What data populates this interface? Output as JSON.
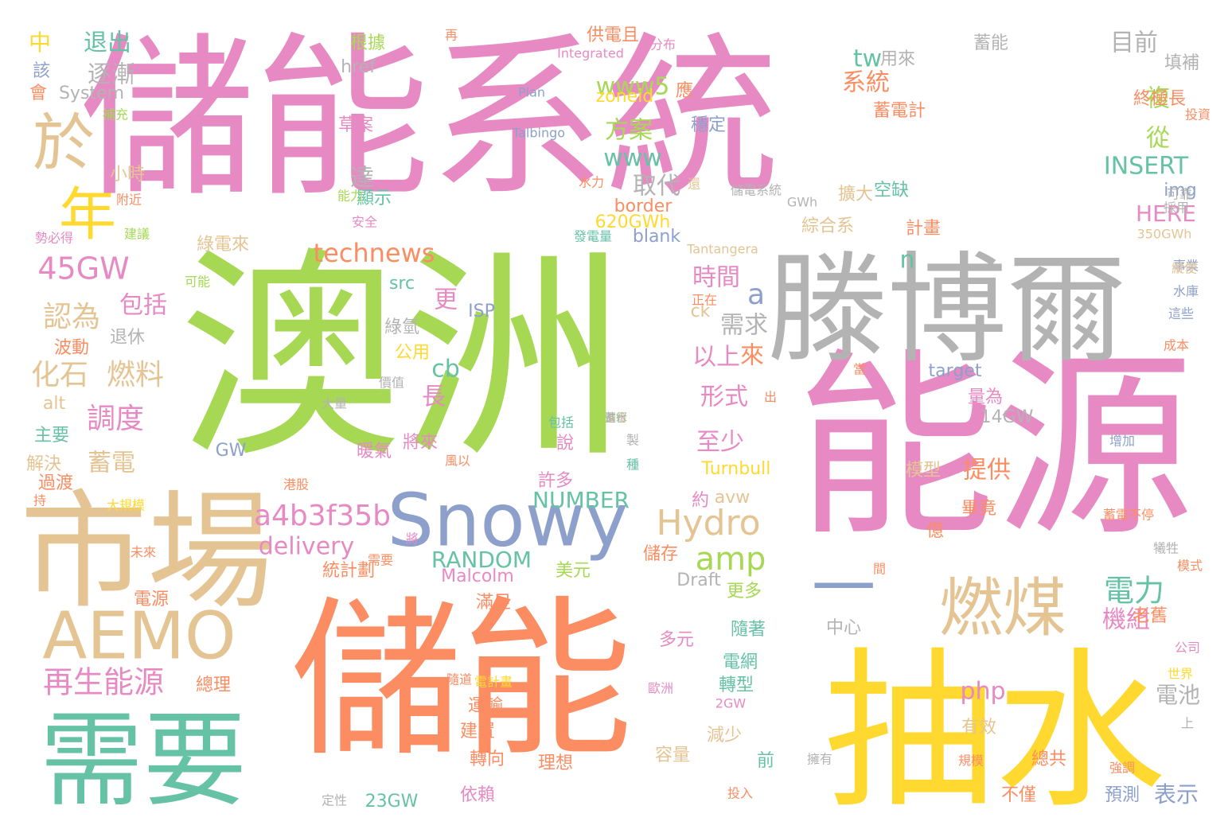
{
  "palette": {
    "pink": "#e78ac3",
    "green": "#a6d854",
    "orange": "#fc8d62",
    "yellow": "#ffd92f",
    "tan": "#e5c494",
    "gray": "#b3b3b3",
    "teal": "#66c2a5",
    "blue": "#8da0cb"
  },
  "words": [
    {
      "text": "儲能系統",
      "color": "pink",
      "weight": 1.0
    },
    {
      "text": "澳洲",
      "color": "green",
      "weight": 0.98
    },
    {
      "text": "能源",
      "color": "pink",
      "weight": 0.86
    },
    {
      "text": "儲能",
      "color": "orange",
      "weight": 0.86
    },
    {
      "text": "抽水",
      "color": "yellow",
      "weight": 0.84
    },
    {
      "text": "滕博爾",
      "color": "gray",
      "weight": 0.62
    },
    {
      "text": "市場",
      "color": "tan",
      "weight": 0.56
    },
    {
      "text": "需要",
      "color": "teal",
      "weight": 0.48
    },
    {
      "text": "Snowy",
      "color": "blue",
      "weight": 0.36
    },
    {
      "text": "AEMO",
      "color": "tan",
      "weight": 0.34
    },
    {
      "text": "燃煤",
      "color": "tan",
      "weight": 0.3
    },
    {
      "text": "一",
      "color": "blue",
      "weight": 0.26
    },
    {
      "text": "於",
      "color": "tan",
      "weight": 0.24
    },
    {
      "text": "年",
      "color": "yellow",
      "weight": 0.2
    },
    {
      "text": "Hydro",
      "color": "tan",
      "weight": 0.16
    },
    {
      "text": "amp",
      "color": "green",
      "weight": 0.16
    },
    {
      "text": "電力",
      "color": "teal",
      "weight": 0.15
    },
    {
      "text": "45GW",
      "color": "pink",
      "weight": 0.14
    },
    {
      "text": "再生能源",
      "color": "pink",
      "weight": 0.14
    },
    {
      "text": "a4b3f35b",
      "color": "pink",
      "weight": 0.13
    },
    {
      "text": "a",
      "color": "blue",
      "weight": 0.13
    },
    {
      "text": "認為",
      "color": "tan",
      "weight": 0.13
    },
    {
      "text": "化石",
      "color": "tan",
      "weight": 0.12
    },
    {
      "text": "燃料",
      "color": "tan",
      "weight": 0.12
    },
    {
      "text": "調度",
      "color": "pink",
      "weight": 0.12
    },
    {
      "text": "technews",
      "color": "orange",
      "weight": 0.12
    },
    {
      "text": "php",
      "color": "pink",
      "weight": 0.12
    },
    {
      "text": "電池",
      "color": "gray",
      "weight": 0.12
    },
    {
      "text": "系統",
      "color": "orange",
      "weight": 0.11
    },
    {
      "text": "逐漸",
      "color": "gray",
      "weight": 0.11
    },
    {
      "text": "退出",
      "color": "teal",
      "weight": 0.11
    },
    {
      "text": "目前",
      "color": "gray",
      "weight": 0.11
    },
    {
      "text": "www5",
      "color": "green",
      "weight": 0.11
    },
    {
      "text": "INSERT",
      "color": "teal",
      "weight": 0.11
    },
    {
      "text": "www",
      "color": "teal",
      "weight": 0.11
    },
    {
      "text": "方案",
      "color": "green",
      "weight": 0.11
    },
    {
      "text": "取代",
      "color": "gray",
      "weight": 0.11
    },
    {
      "text": "時間",
      "color": "pink",
      "weight": 0.1
    },
    {
      "text": "至少",
      "color": "pink",
      "weight": 0.1
    },
    {
      "text": "形式",
      "color": "pink",
      "weight": 0.1
    },
    {
      "text": "更",
      "color": "pink",
      "weight": 0.1
    },
    {
      "text": "delivery",
      "color": "pink",
      "weight": 0.1
    },
    {
      "text": "NUMBER",
      "color": "teal",
      "weight": 0.1
    },
    {
      "text": "RANDOM",
      "color": "teal",
      "weight": 0.1
    },
    {
      "text": "蓄電",
      "color": "tan",
      "weight": 0.1
    },
    {
      "text": "需求",
      "color": "gray",
      "weight": 0.1
    },
    {
      "text": "HERE",
      "color": "pink",
      "weight": 0.1
    },
    {
      "text": "提供",
      "color": "orange",
      "weight": 0.1
    },
    {
      "text": "機組",
      "color": "pink",
      "weight": 0.1
    },
    {
      "text": "表示",
      "color": "blue",
      "weight": 0.1
    },
    {
      "text": "tw",
      "color": "teal",
      "weight": 0.1
    },
    {
      "text": "cb",
      "color": "teal",
      "weight": 0.09
    },
    {
      "text": "n",
      "color": "teal",
      "weight": 0.09
    },
    {
      "text": "以上",
      "color": "pink",
      "weight": 0.09
    },
    {
      "text": "包括",
      "color": "pink",
      "weight": 0.09
    },
    {
      "text": "達",
      "color": "gray",
      "weight": 0.09
    },
    {
      "text": "從",
      "color": "green",
      "weight": 0.09
    },
    {
      "text": "複",
      "color": "green",
      "weight": 0.09
    },
    {
      "text": "來",
      "color": "orange",
      "weight": 0.09
    },
    {
      "text": "長",
      "color": "pink",
      "weight": 0.09
    },
    {
      "text": "中",
      "color": "yellow",
      "weight": 0.08
    },
    {
      "text": "計畫",
      "color": "orange",
      "weight": 0.06
    },
    {
      "text": "將來",
      "color": "pink",
      "weight": 0.06
    },
    {
      "text": "暖氣",
      "color": "pink",
      "weight": 0.06
    },
    {
      "text": "約",
      "color": "pink",
      "weight": 0.08
    },
    {
      "text": "擴大",
      "color": "tan",
      "weight": 0.06
    },
    {
      "text": "綜合系",
      "color": "tan",
      "weight": 0.06
    },
    {
      "text": "Turnbull",
      "color": "yellow",
      "weight": 0.06
    },
    {
      "text": "Malcolm",
      "color": "pink",
      "weight": 0.06
    },
    {
      "text": "更多",
      "color": "green",
      "weight": 0.06
    },
    {
      "text": "美元",
      "color": "green",
      "weight": 0.06
    },
    {
      "text": "滿足",
      "color": "orange",
      "weight": 0.06
    },
    {
      "text": "電源",
      "color": "orange",
      "weight": 0.06
    },
    {
      "text": "統計劃",
      "color": "orange",
      "weight": 0.06
    },
    {
      "text": "儲存",
      "color": "orange",
      "weight": 0.06
    },
    {
      "text": "Draft",
      "color": "gray",
      "weight": 0.06
    },
    {
      "text": "中心",
      "color": "gray",
      "weight": 0.06
    },
    {
      "text": "隨著",
      "color": "teal",
      "weight": 0.06
    },
    {
      "text": "多元",
      "color": "pink",
      "weight": 0.06
    },
    {
      "text": "電網",
      "color": "teal",
      "weight": 0.06
    },
    {
      "text": "轉型",
      "color": "teal",
      "weight": 0.06
    },
    {
      "text": "總理",
      "color": "orange",
      "weight": 0.06
    },
    {
      "text": "運輸",
      "color": "orange",
      "weight": 0.06
    },
    {
      "text": "建置",
      "color": "orange",
      "weight": 0.06
    },
    {
      "text": "轉向",
      "color": "orange",
      "weight": 0.06
    },
    {
      "text": "理想",
      "color": "orange",
      "weight": 0.06
    },
    {
      "text": "容量",
      "color": "tan",
      "weight": 0.06
    },
    {
      "text": "減少",
      "color": "tan",
      "weight": 0.06
    },
    {
      "text": "前",
      "color": "teal",
      "weight": 0.06
    },
    {
      "text": "依賴",
      "color": "pink",
      "weight": 0.06
    },
    {
      "text": "23GW",
      "color": "teal",
      "weight": 0.06
    },
    {
      "text": "不僅",
      "color": "orange",
      "weight": 0.06
    },
    {
      "text": "預測",
      "color": "blue",
      "weight": 0.06
    },
    {
      "text": "總共",
      "color": "orange",
      "weight": 0.06
    },
    {
      "text": "有效",
      "color": "tan",
      "weight": 0.06
    },
    {
      "text": "模型",
      "color": "tan",
      "weight": 0.06
    },
    {
      "text": "畢竟",
      "color": "orange",
      "weight": 0.06
    },
    {
      "text": "億",
      "color": "orange",
      "weight": 0.06
    },
    {
      "text": "老舊",
      "color": "orange",
      "weight": 0.06
    },
    {
      "text": "量為",
      "color": "pink",
      "weight": 0.06
    },
    {
      "text": "14GW",
      "color": "gray",
      "weight": 0.06
    },
    {
      "text": "target",
      "color": "blue",
      "weight": 0.06
    },
    {
      "text": "用來",
      "color": "gray",
      "weight": 0.06
    },
    {
      "text": "蓄能",
      "color": "gray",
      "weight": 0.06
    },
    {
      "text": "填補",
      "color": "gray",
      "weight": 0.06
    },
    {
      "text": "終極長",
      "color": "orange",
      "weight": 0.06
    },
    {
      "text": "img",
      "color": "blue",
      "weight": 0.06
    },
    {
      "text": "空缺",
      "color": "teal",
      "weight": 0.06
    },
    {
      "text": "蓄電計",
      "color": "orange",
      "weight": 0.06
    },
    {
      "text": "穩定",
      "color": "blue",
      "weight": 0.06
    },
    {
      "text": "應",
      "color": "orange",
      "weight": 0.06
    },
    {
      "text": "草案",
      "color": "pink",
      "weight": 0.06
    },
    {
      "text": "根據",
      "color": "green",
      "weight": 0.06
    },
    {
      "text": "供電且",
      "color": "orange",
      "weight": 0.06
    },
    {
      "text": "href",
      "color": "gray",
      "weight": 0.06
    },
    {
      "text": "zoneid",
      "color": "yellow",
      "weight": 0.06
    },
    {
      "text": "顯示",
      "color": "teal",
      "weight": 0.06
    },
    {
      "text": "border",
      "color": "orange",
      "weight": 0.06
    },
    {
      "text": "620GWh",
      "color": "yellow",
      "weight": 0.06
    },
    {
      "text": "blank",
      "color": "blue",
      "weight": 0.06
    },
    {
      "text": "綠電來",
      "color": "tan",
      "weight": 0.06
    },
    {
      "text": "src",
      "color": "teal",
      "weight": 0.06
    },
    {
      "text": "綠氫",
      "color": "gray",
      "weight": 0.06
    },
    {
      "text": "說",
      "color": "pink",
      "weight": 0.06
    },
    {
      "text": "許多",
      "color": "pink",
      "weight": 0.06
    },
    {
      "text": "GW",
      "color": "blue",
      "weight": 0.06
    },
    {
      "text": "解決",
      "color": "tan",
      "weight": 0.06
    },
    {
      "text": "過渡",
      "color": "orange",
      "weight": 0.06
    },
    {
      "text": "主要",
      "color": "teal",
      "weight": 0.06
    },
    {
      "text": "波動",
      "color": "orange",
      "weight": 0.06
    },
    {
      "text": "退休",
      "color": "gray",
      "weight": 0.06
    },
    {
      "text": "小時",
      "color": "tan",
      "weight": 0.06
    },
    {
      "text": "該",
      "color": "blue",
      "weight": 0.06
    },
    {
      "text": "會",
      "color": "orange",
      "weight": 0.06
    },
    {
      "text": "alt",
      "color": "tan",
      "weight": 0.06
    },
    {
      "text": "ck",
      "color": "tan",
      "weight": 0.06
    },
    {
      "text": "ISP",
      "color": "blue",
      "weight": 0.06
    },
    {
      "text": "avw",
      "color": "tan",
      "weight": 0.06
    },
    {
      "text": "公用",
      "color": "yellow",
      "weight": 0.06
    },
    {
      "text": "System",
      "color": "gray",
      "weight": 0.06
    },
    {
      "text": "補充",
      "color": "green",
      "weight": 0.06
    },
    {
      "text": "附近",
      "color": "orange",
      "weight": 0.06
    },
    {
      "text": "建議",
      "color": "green",
      "weight": 0.06
    },
    {
      "text": "勢必得",
      "color": "pink",
      "weight": 0.06
    },
    {
      "text": "可能",
      "color": "green",
      "weight": 0.06
    },
    {
      "text": "安全",
      "color": "pink",
      "weight": 0.06
    },
    {
      "text": "發電量",
      "color": "teal",
      "weight": 0.06
    },
    {
      "text": "Talbingo",
      "color": "blue",
      "weight": 0.06
    },
    {
      "text": "Tantangera",
      "color": "tan",
      "weight": 0.06
    },
    {
      "text": "350GWh",
      "color": "tan",
      "weight": 0.06
    },
    {
      "text": "Integrated",
      "color": "pink",
      "weight": 0.06
    },
    {
      "text": "Plan",
      "color": "blue",
      "weight": 0.06
    },
    {
      "text": "大量",
      "color": "gray",
      "weight": 0.06
    },
    {
      "text": "大規模",
      "color": "yellow",
      "weight": 0.06
    },
    {
      "text": "蓄電不停",
      "color": "orange",
      "weight": 0.06
    },
    {
      "text": "水庫",
      "color": "blue",
      "weight": 0.06
    },
    {
      "text": "採用",
      "color": "gray",
      "weight": 0.06
    },
    {
      "text": "公司",
      "color": "pink",
      "weight": 0.06
    },
    {
      "text": "世界",
      "color": "yellow",
      "weight": 0.06
    },
    {
      "text": "可靠",
      "color": "gray",
      "weight": 0.06
    },
    {
      "text": "成本",
      "color": "orange",
      "weight": 0.06
    },
    {
      "text": "水力",
      "color": "orange",
      "weight": 0.06
    },
    {
      "text": "還",
      "color": "tan",
      "weight": 0.06
    },
    {
      "text": "儲電系統",
      "color": "gray",
      "weight": 0.06
    },
    {
      "text": "出",
      "color": "orange",
      "weight": 0.06
    },
    {
      "text": "間",
      "color": "orange",
      "weight": 0.06
    },
    {
      "text": "模式",
      "color": "orange",
      "weight": 0.06
    },
    {
      "text": "未來",
      "color": "orange",
      "weight": 0.06
    },
    {
      "text": "投入",
      "color": "orange",
      "weight": 0.06
    },
    {
      "text": "定性",
      "color": "gray",
      "weight": 0.06
    },
    {
      "text": "增加",
      "color": "blue",
      "weight": 0.06
    },
    {
      "text": "事業",
      "color": "blue",
      "weight": 0.06
    },
    {
      "text": "隨道",
      "color": "orange",
      "weight": 0.06
    },
    {
      "text": "電計畫",
      "color": "yellow",
      "weight": 0.06
    },
    {
      "text": "歐洲",
      "color": "pink",
      "weight": 0.06
    },
    {
      "text": "2GW",
      "color": "pink",
      "weight": 0.06
    },
    {
      "text": "上",
      "color": "gray",
      "weight": 0.06
    },
    {
      "text": "強調",
      "color": "orange",
      "weight": 0.06
    },
    {
      "text": "規模",
      "color": "orange",
      "weight": 0.06
    },
    {
      "text": "擁有",
      "color": "gray",
      "weight": 0.06
    },
    {
      "text": "種",
      "color": "teal",
      "weight": 0.06
    },
    {
      "text": "包括",
      "color": "teal",
      "weight": 0.06
    },
    {
      "text": "製",
      "color": "gray",
      "weight": 0.06
    },
    {
      "text": "投資",
      "color": "orange",
      "weight": 0.06
    },
    {
      "text": "分布",
      "color": "pink",
      "weight": 0.06
    },
    {
      "text": "犧牲",
      "color": "gray",
      "weight": 0.06
    },
    {
      "text": "當",
      "color": "orange",
      "weight": 0.06
    },
    {
      "text": "持",
      "color": "orange",
      "weight": 0.06
    },
    {
      "text": "港股",
      "color": "orange",
      "weight": 0.06
    },
    {
      "text": "正在",
      "color": "orange",
      "weight": 0.06
    },
    {
      "text": "能力",
      "color": "green",
      "weight": 0.06
    },
    {
      "text": "這些",
      "color": "blue",
      "weight": 0.06
    },
    {
      "text": "縱使",
      "color": "tan",
      "weight": 0.06
    },
    {
      "text": "將",
      "color": "pink",
      "weight": 0.06
    },
    {
      "text": "價值",
      "color": "gray",
      "weight": 0.06
    },
    {
      "text": "風以",
      "color": "orange",
      "weight": 0.06
    },
    {
      "text": "GWh",
      "color": "gray",
      "weight": 0.06
    },
    {
      "text": "再",
      "color": "orange",
      "weight": 0.06
    },
    {
      "text": "需要",
      "color": "orange",
      "weight": 0.06
    },
    {
      "text": "進行",
      "color": "teal",
      "weight": 0.06
    },
    {
      "text": "潛發",
      "color": "tan",
      "weight": 0.06
    },
    {
      "text": "蓄水",
      "color": "gray",
      "weight": 0.06
    }
  ]
}
